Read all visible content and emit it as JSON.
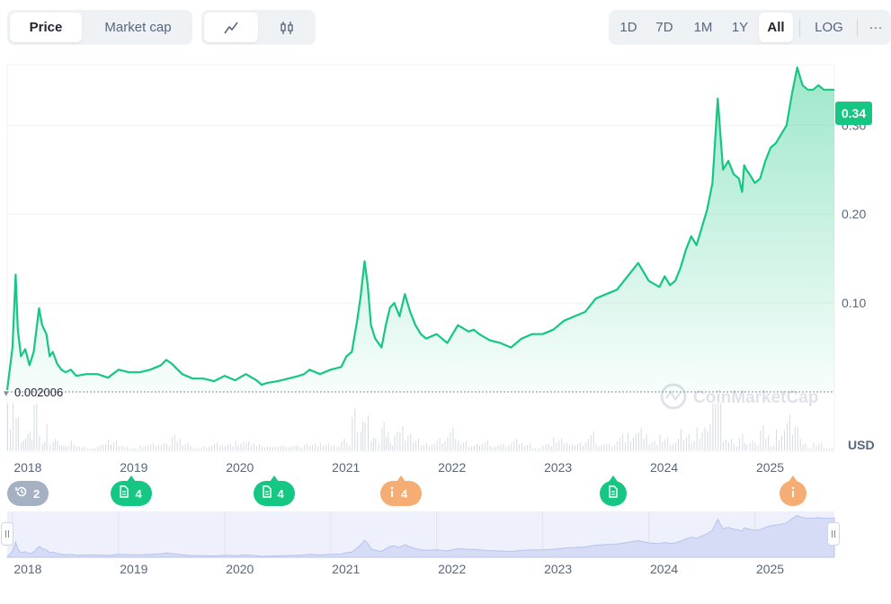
{
  "toolbar": {
    "view_tabs": [
      {
        "label": "Price",
        "active": true
      },
      {
        "label": "Market cap",
        "active": false
      }
    ],
    "chart_types": [
      {
        "icon": "line-chart-icon",
        "active": true
      },
      {
        "icon": "candlestick-icon",
        "active": false
      }
    ],
    "ranges": [
      {
        "label": "1D",
        "active": false
      },
      {
        "label": "7D",
        "active": false
      },
      {
        "label": "1M",
        "active": false
      },
      {
        "label": "1Y",
        "active": false
      },
      {
        "label": "All",
        "active": true
      }
    ],
    "log_label": "LOG",
    "more_label": "···"
  },
  "colors": {
    "line": "#16c784",
    "area_top": "#16c784",
    "grid": "#eff2f5",
    "text": "#58667e",
    "marker_green": "#16c784",
    "marker_orange": "#f5ad73",
    "marker_gray": "#a6b0c3"
  },
  "chart_data": {
    "type": "line",
    "currency_label": "USD",
    "current_price_label": "0.34",
    "start_price_label": "0.002006",
    "ylim": [
      0,
      0.36
    ],
    "yticks": [
      {
        "value": 0.1,
        "label": "0.10"
      },
      {
        "value": 0.2,
        "label": "0.20"
      },
      {
        "value": 0.3,
        "label": "0.30"
      }
    ],
    "xlim": [
      2017.95,
      2025.75
    ],
    "xticks": [
      {
        "value": 2018,
        "label": "2018"
      },
      {
        "value": 2019,
        "label": "2019"
      },
      {
        "value": 2020,
        "label": "2020"
      },
      {
        "value": 2021,
        "label": "2021"
      },
      {
        "value": 2022,
        "label": "2022"
      },
      {
        "value": 2023,
        "label": "2023"
      },
      {
        "value": 2024,
        "label": "2024"
      },
      {
        "value": 2025,
        "label": "2025"
      }
    ],
    "watermark": "CoinMarketCap",
    "series": [
      {
        "x": [
          2017.95,
          2018.0,
          2018.03,
          2018.05,
          2018.08,
          2018.12,
          2018.16,
          2018.2,
          2018.25,
          2018.28,
          2018.32,
          2018.35,
          2018.38,
          2018.42,
          2018.46,
          2018.5,
          2018.55,
          2018.6,
          2018.7,
          2018.8,
          2018.9,
          2019.0,
          2019.1,
          2019.2,
          2019.3,
          2019.4,
          2019.45,
          2019.5,
          2019.6,
          2019.7,
          2019.8,
          2019.9,
          2020.0,
          2020.1,
          2020.2,
          2020.3,
          2020.35,
          2020.4,
          2020.5,
          2020.6,
          2020.7,
          2020.75,
          2020.8,
          2020.9,
          2021.0,
          2021.1,
          2021.15,
          2021.2,
          2021.25,
          2021.28,
          2021.32,
          2021.35,
          2021.38,
          2021.42,
          2021.48,
          2021.52,
          2021.56,
          2021.6,
          2021.65,
          2021.7,
          2021.75,
          2021.8,
          2021.85,
          2021.9,
          2022.0,
          2022.1,
          2022.2,
          2022.3,
          2022.35,
          2022.4,
          2022.5,
          2022.6,
          2022.7,
          2022.8,
          2022.9,
          2023.0,
          2023.1,
          2023.2,
          2023.3,
          2023.4,
          2023.5,
          2023.6,
          2023.7,
          2023.8,
          2023.9,
          2024.0,
          2024.1,
          2024.15,
          2024.2,
          2024.25,
          2024.3,
          2024.35,
          2024.4,
          2024.45,
          2024.5,
          2024.55,
          2024.6,
          2024.65,
          2024.7,
          2024.75,
          2024.8,
          2024.85,
          2024.88,
          2024.9,
          2024.92,
          2024.95,
          2025.0,
          2025.05,
          2025.1,
          2025.15,
          2025.2,
          2025.3,
          2025.35,
          2025.4,
          2025.45,
          2025.5,
          2025.55,
          2025.6,
          2025.65,
          2025.7,
          2025.75
        ],
        "y": [
          0.002006,
          0.05,
          0.132,
          0.07,
          0.04,
          0.048,
          0.03,
          0.045,
          0.094,
          0.075,
          0.065,
          0.04,
          0.045,
          0.032,
          0.025,
          0.022,
          0.025,
          0.018,
          0.02,
          0.02,
          0.016,
          0.025,
          0.022,
          0.022,
          0.025,
          0.03,
          0.036,
          0.032,
          0.02,
          0.015,
          0.015,
          0.012,
          0.018,
          0.013,
          0.02,
          0.013,
          0.008,
          0.01,
          0.012,
          0.015,
          0.018,
          0.02,
          0.025,
          0.02,
          0.025,
          0.028,
          0.04,
          0.045,
          0.08,
          0.105,
          0.147,
          0.12,
          0.075,
          0.06,
          0.05,
          0.075,
          0.095,
          0.1,
          0.085,
          0.11,
          0.09,
          0.075,
          0.065,
          0.06,
          0.065,
          0.055,
          0.075,
          0.068,
          0.07,
          0.065,
          0.058,
          0.055,
          0.05,
          0.06,
          0.065,
          0.065,
          0.07,
          0.08,
          0.085,
          0.09,
          0.105,
          0.11,
          0.115,
          0.13,
          0.145,
          0.125,
          0.118,
          0.13,
          0.12,
          0.125,
          0.14,
          0.16,
          0.175,
          0.165,
          0.185,
          0.205,
          0.235,
          0.33,
          0.25,
          0.26,
          0.245,
          0.24,
          0.225,
          0.255,
          0.25,
          0.245,
          0.235,
          0.24,
          0.26,
          0.275,
          0.28,
          0.3,
          0.335,
          0.365,
          0.345,
          0.34,
          0.34,
          0.345,
          0.34,
          0.34,
          0.34
        ]
      }
    ]
  },
  "events": [
    {
      "label": "2",
      "kind": "gray",
      "icon": "history-icon",
      "x": 2017.98
    },
    {
      "label": "4",
      "kind": "green",
      "icon": "document-icon",
      "x": 2018.98
    },
    {
      "label": "4",
      "kind": "green",
      "icon": "document-icon",
      "x": 2020.32
    },
    {
      "label": "4",
      "kind": "orange",
      "icon": "info-icon",
      "x": 2021.52
    },
    {
      "label": "",
      "kind": "green",
      "icon": "document-icon",
      "x": 2023.52
    },
    {
      "label": "",
      "kind": "orange",
      "icon": "info-icon",
      "x": 2025.22
    }
  ]
}
